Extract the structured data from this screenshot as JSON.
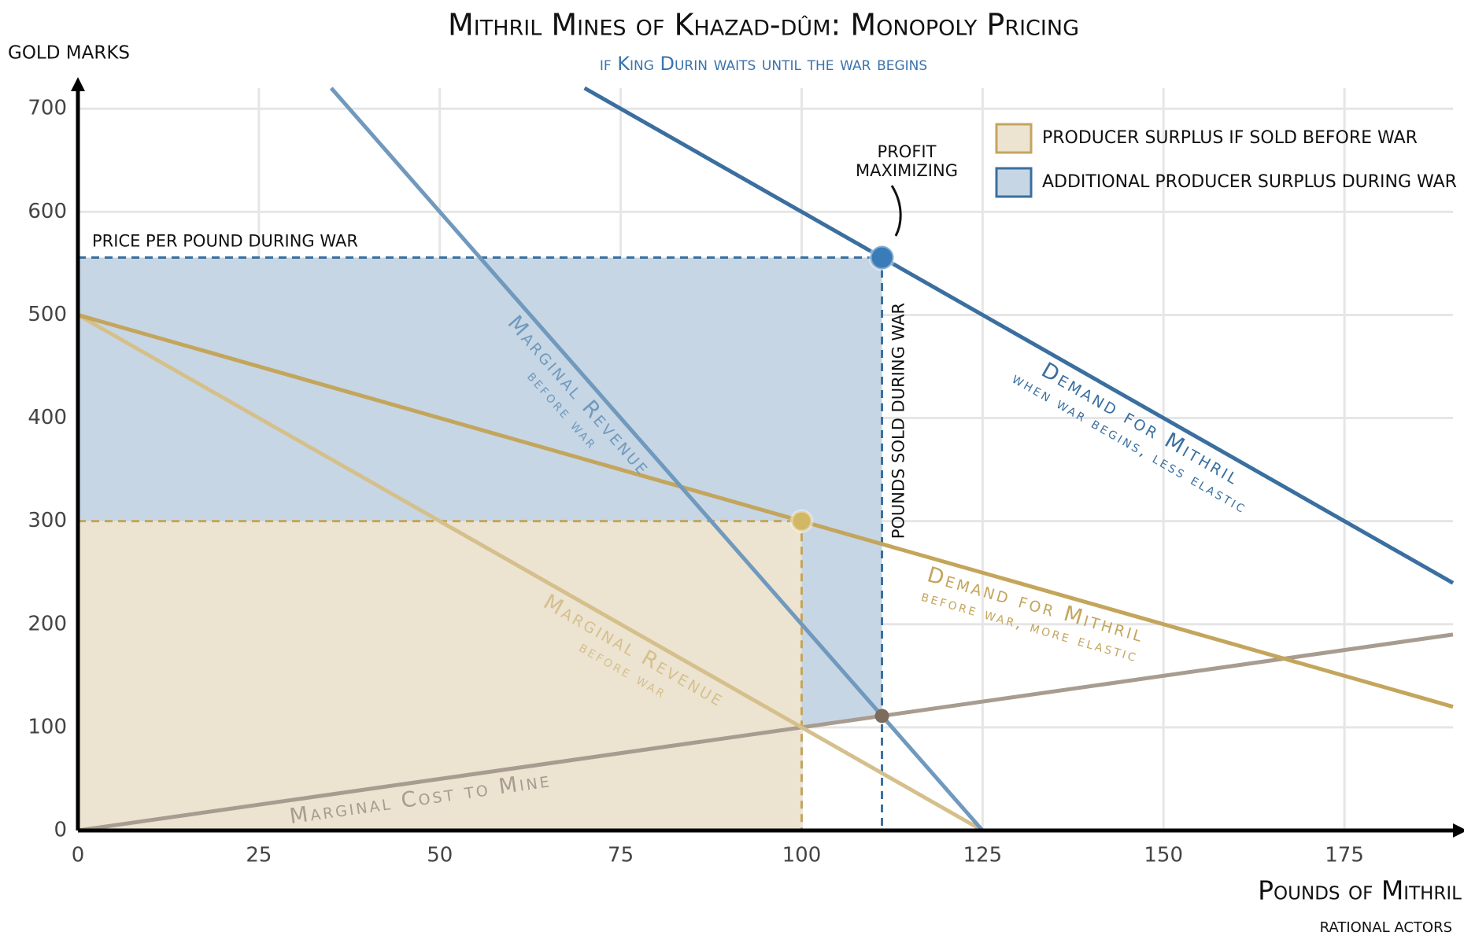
{
  "chart_data": {
    "type": "line",
    "title": "Mithril Mines of Khazad-dûm: Monopoly Pricing",
    "subtitle": "if King Durin waits until the war begins",
    "y_label": "GOLD MARKS",
    "x_label": "Pounds of Mithril",
    "footer": "RATIONAL ACTORS",
    "xlim": [
      0,
      190
    ],
    "ylim": [
      0,
      720
    ],
    "xticks": [
      0,
      25,
      50,
      75,
      100,
      125,
      150,
      175
    ],
    "yticks": [
      0,
      100,
      200,
      300,
      400,
      500,
      600,
      700
    ],
    "grid": true,
    "legend": "upper right",
    "areas": [
      {
        "name": "PRODUCER SURPLUS IF SOLD BEFORE WAR",
        "color": "#ece3d1",
        "x": [
          0,
          100,
          100,
          0
        ],
        "values": [
          0,
          0,
          300,
          300
        ]
      },
      {
        "name": "ADDITIONAL PRODUCER SURPLUS DURING WAR",
        "color": "#c6d6e4",
        "x": [
          0,
          111.1,
          111.1,
          100,
          100,
          0
        ],
        "values": [
          555.6,
          555.6,
          111.1,
          100,
          300,
          300
        ]
      }
    ],
    "lines": [
      {
        "label": "Marginal Cost to Mine",
        "color": "#a89c90",
        "x": [
          0,
          190
        ],
        "values": [
          0,
          190
        ]
      },
      {
        "label": "Marginal Revenue",
        "note": "before war",
        "color": "#d5c08c",
        "x": [
          0,
          125
        ],
        "values": [
          500,
          0
        ]
      },
      {
        "label": "Demand for Mithril",
        "note": "before war, more elastic",
        "color": "#c4a55c",
        "x": [
          0,
          190
        ],
        "values": [
          500,
          120
        ]
      },
      {
        "label": "Marginal Revenue",
        "note": "before war",
        "color": "#7099bd",
        "x": [
          35,
          125
        ],
        "values": [
          720,
          0
        ]
      },
      {
        "label": "Demand for Mithril",
        "note": "when war begins, less elastic",
        "color": "#3a6f9f",
        "x": [
          70,
          190
        ],
        "values": [
          720,
          240
        ]
      }
    ],
    "points": [
      {
        "x": 100,
        "y": 300,
        "color": "#d2b865"
      },
      {
        "x": 111.1,
        "y": 555.6,
        "color": "#3a7cb8"
      },
      {
        "x": 111.1,
        "y": 111.1,
        "color": "#7d6b5c"
      }
    ],
    "annotations": {
      "price": "PRICE PER POUND DURING WAR",
      "quantity": "POUNDS SOLD DURING WAR",
      "profit": [
        "PROFIT",
        "MAXIMIZING"
      ]
    }
  }
}
